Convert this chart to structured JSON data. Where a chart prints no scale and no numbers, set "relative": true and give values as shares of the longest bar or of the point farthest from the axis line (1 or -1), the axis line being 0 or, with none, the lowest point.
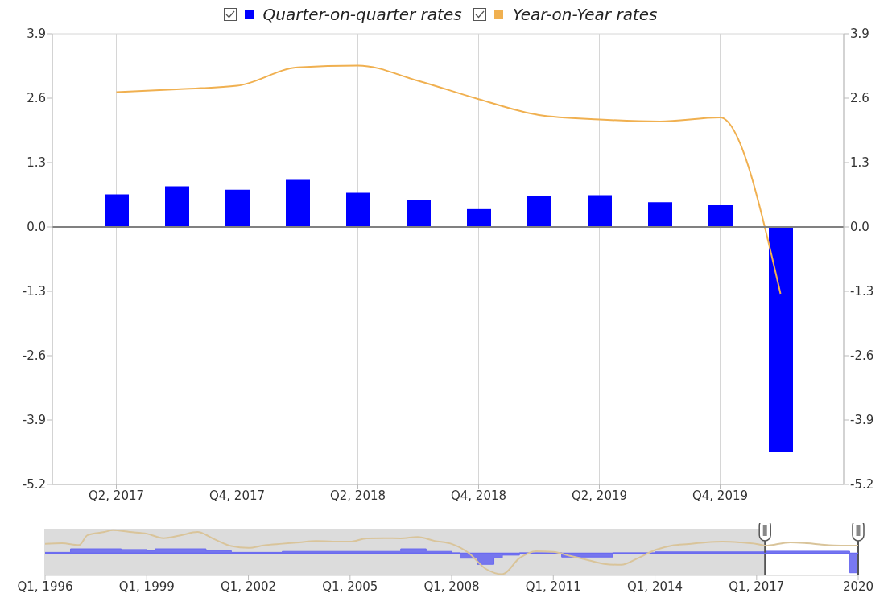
{
  "chart_data": [
    {
      "type": "bar",
      "categories": [
        "Q2, 2017",
        null,
        "Q4, 2017",
        null,
        "Q2, 2018",
        null,
        "Q4, 2018",
        null,
        "Q2, 2019",
        null,
        "Q4, 2019",
        null
      ],
      "series": [
        {
          "name": "Quarter-on-quarter rates",
          "type": "bar",
          "color": "#0000ff",
          "values": [
            0.66,
            0.82,
            0.75,
            0.95,
            0.69,
            0.54,
            0.36,
            0.62,
            0.64,
            0.5,
            0.44,
            -4.55
          ]
        },
        {
          "name": "Year-on-Year rates",
          "type": "line",
          "color": "#f0b050",
          "values": [
            2.72,
            2.78,
            2.85,
            3.22,
            3.26,
            2.95,
            2.58,
            2.26,
            2.17,
            2.13,
            2.21,
            -1.35
          ]
        }
      ],
      "ylim": [
        -5.2,
        3.9
      ],
      "yticks": [
        -5.2,
        -3.9,
        -2.6,
        -1.3,
        {
          "value": 0,
          "label": "0.0"
        },
        1.3,
        2.6,
        3.9
      ],
      "y2lim": [
        -5.2,
        3.9
      ],
      "y2ticks": [
        -5.2,
        -3.9,
        -2.6,
        -1.3,
        {
          "value": 0,
          "label": "0.0"
        },
        1.3,
        2.6,
        3.9
      ],
      "ref_lines": [
        {
          "axis": "y",
          "value": 0,
          "color": "#808080"
        }
      ],
      "grid": true,
      "legend": "top",
      "marker": "none"
    },
    {
      "type": "area",
      "relative": true,
      "grid": "x",
      "tick_labels": "x",
      "xlim": [
        "1996-01",
        "2020-01"
      ],
      "xticks": [
        {
          "value": "1996-01",
          "label": "Q1, 1996"
        },
        {
          "value": "1999-01",
          "label": "Q1, 1999"
        },
        {
          "value": "2002-01",
          "label": "Q1, 2002"
        },
        {
          "value": "2005-01",
          "label": "Q1, 2005"
        },
        {
          "value": "2008-01",
          "label": "Q1, 2008"
        },
        {
          "value": "2011-01",
          "label": "Q1, 2011"
        },
        {
          "value": "2014-01",
          "label": "Q1, 2014"
        },
        {
          "value": "2017-01",
          "label": "Q1, 2017"
        },
        {
          "value": "2020-01",
          "label": "2020"
        }
      ],
      "bands": [
        {
          "axis": "x",
          "from": "1996-01",
          "to": "2017-04",
          "color": "#dcdcdc"
        }
      ],
      "ref_lines": [
        {
          "axis": "x",
          "value": "2017-04",
          "color": "#555555"
        },
        {
          "axis": "x",
          "value": "2020-01",
          "color": "#555555"
        },
        {
          "axis": "y",
          "value": 0,
          "color": "#6a6af0"
        }
      ],
      "series": [
        {
          "type": "area",
          "color": "#6a6af0",
          "x": [
            "1996-01",
            "1996-10",
            "1998-04",
            "1999-01",
            "1999-04",
            "2000-10",
            "2001-07",
            "2003-01",
            "2006-07",
            "2007-04",
            "2008-01",
            "2008-04",
            "2008-10",
            "2009-04",
            "2009-07",
            "2010-01",
            "2011-04",
            "2012-10",
            "2014-01",
            "2017-04",
            "2019-10",
            "2020-01"
          ],
          "values": [
            0.05,
            0.2,
            0.17,
            0.12,
            0.2,
            0.12,
            0.05,
            0.09,
            0.2,
            0.09,
            0.03,
            -0.2,
            -0.46,
            -0.19,
            -0.07,
            0.03,
            -0.15,
            0.03,
            0.07,
            0.1,
            -0.82,
            -0.82
          ]
        },
        {
          "type": "line",
          "color": "#d9c49a",
          "x": [
            "1996-01",
            "1996-07",
            "1997-01",
            "1997-04",
            "1997-10",
            "1998-01",
            "1998-07",
            "1999-01",
            "1999-07",
            "2000-01",
            "2000-07",
            "2001-01",
            "2001-07",
            "2002-01",
            "2002-07",
            "2003-01",
            "2003-07",
            "2004-01",
            "2004-07",
            "2005-01",
            "2005-07",
            "2006-01",
            "2006-07",
            "2007-01",
            "2007-07",
            "2008-01",
            "2008-07",
            "2009-01",
            "2009-07",
            "2010-01",
            "2010-07",
            "2011-01",
            "2011-07",
            "2012-01",
            "2012-07",
            "2013-01",
            "2013-07",
            "2014-01",
            "2014-07",
            "2015-01",
            "2015-07",
            "2016-01",
            "2016-07",
            "2017-01",
            "2017-04",
            "2018-01",
            "2018-07",
            "2019-01",
            "2019-07",
            "2020-01"
          ],
          "values": [
            0.42,
            0.44,
            0.36,
            0.78,
            0.92,
            1.0,
            0.92,
            0.85,
            0.66,
            0.78,
            0.92,
            0.61,
            0.32,
            0.24,
            0.36,
            0.42,
            0.48,
            0.54,
            0.51,
            0.51,
            0.65,
            0.66,
            0.65,
            0.71,
            0.54,
            0.41,
            0.03,
            -0.65,
            -0.88,
            -0.2,
            0.1,
            0.07,
            -0.1,
            -0.27,
            -0.44,
            -0.48,
            -0.2,
            0.15,
            0.34,
            0.41,
            0.48,
            0.51,
            0.48,
            0.41,
            0.34,
            0.48,
            0.44,
            0.37,
            0.34,
            0.34
          ]
        }
      ]
    }
  ]
}
